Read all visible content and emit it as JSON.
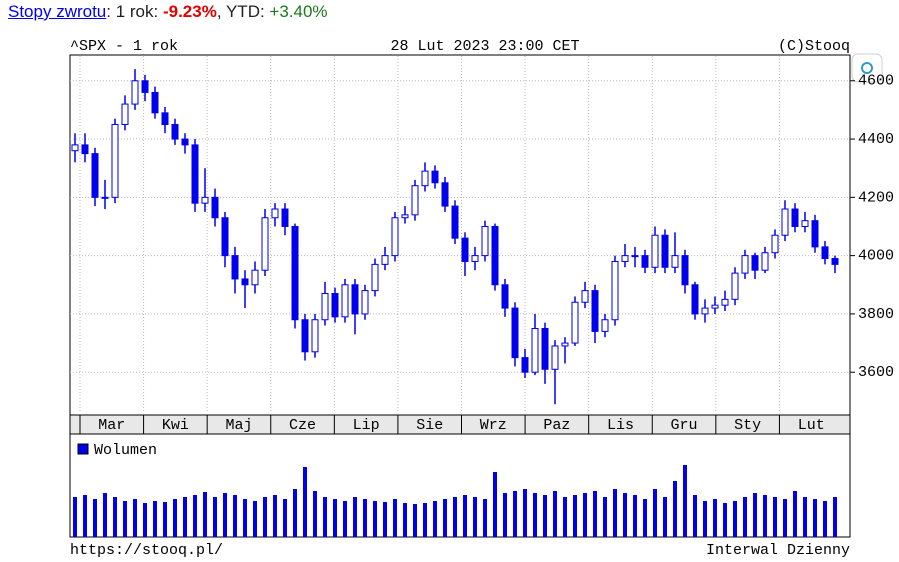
{
  "header": {
    "link": "Stopy zwrotu",
    "period_label": ": 1 rok: ",
    "period_value": "-9.23%",
    "ytd_label": ", YTD: ",
    "ytd_value": "+3.40%"
  },
  "chart_data": [
    {
      "type": "candlestick",
      "title": "^SPX - 1 rok",
      "subtitle": "28 Lut 2023 23:00 CET",
      "source": "(C)Stooq",
      "color": "#0000ee",
      "x_axis_labels": [
        "Mar",
        "Kwi",
        "Maj",
        "Cze",
        "Lip",
        "Sie",
        "Wrz",
        "Paz",
        "Lis",
        "Gru",
        "Sty",
        "Lut"
      ],
      "open": [
        4360,
        4380,
        4350,
        4200,
        4200,
        4450,
        4520,
        4600,
        4560,
        4490,
        4450,
        4400,
        4380,
        4180,
        4200,
        4130,
        4000,
        3920,
        3900,
        3950,
        4130,
        4160,
        4100,
        3780,
        3670,
        3780,
        3870,
        3790,
        3900,
        3800,
        3880,
        3970,
        4000,
        4130,
        4140,
        4240,
        4290,
        4250,
        4170,
        4060,
        3980,
        4000,
        4100,
        3900,
        3820,
        3650,
        3600,
        3750,
        3610,
        3690,
        3700,
        3840,
        3880,
        3740,
        3780,
        3980,
        4000,
        4000,
        3960,
        4070,
        3960,
        4000,
        3900,
        3800,
        3820,
        3830,
        3850,
        3940,
        4000,
        3950,
        4010,
        4070,
        4160,
        4100,
        4120,
        4030,
        3990
      ],
      "high": [
        4420,
        4420,
        4370,
        4260,
        4470,
        4550,
        4640,
        4620,
        4580,
        4510,
        4470,
        4420,
        4400,
        4300,
        4230,
        4150,
        4030,
        3950,
        3980,
        4160,
        4180,
        4180,
        4110,
        3800,
        3800,
        3910,
        3890,
        3920,
        3920,
        3900,
        3990,
        4030,
        4150,
        4170,
        4260,
        4320,
        4310,
        4270,
        4190,
        4080,
        4030,
        4120,
        4110,
        3920,
        3840,
        3680,
        3800,
        3770,
        3710,
        3720,
        3860,
        3910,
        3900,
        3800,
        4000,
        4040,
        4030,
        4020,
        4100,
        4090,
        4080,
        4020,
        3910,
        3850,
        3860,
        3880,
        3960,
        4020,
        4010,
        4030,
        4090,
        4190,
        4180,
        4150,
        4140,
        4050,
        4000
      ],
      "low": [
        4320,
        4320,
        4170,
        4160,
        4180,
        4430,
        4500,
        4530,
        4470,
        4420,
        4380,
        4350,
        4150,
        4150,
        4100,
        3960,
        3870,
        3820,
        3870,
        3930,
        4100,
        4070,
        3750,
        3640,
        3650,
        3760,
        3770,
        3770,
        3730,
        3780,
        3860,
        3950,
        3980,
        4110,
        4120,
        4220,
        4230,
        4150,
        4040,
        3930,
        3950,
        3980,
        3880,
        3790,
        3620,
        3580,
        3590,
        3560,
        3490,
        3630,
        3690,
        3820,
        3700,
        3720,
        3760,
        3960,
        3960,
        3940,
        3940,
        3940,
        3940,
        3870,
        3780,
        3770,
        3800,
        3810,
        3830,
        3920,
        3920,
        3940,
        3990,
        4050,
        4080,
        4080,
        4010,
        3970,
        3940
      ],
      "close": [
        4380,
        4350,
        4200,
        4200,
        4450,
        4520,
        4600,
        4560,
        4490,
        4450,
        4400,
        4380,
        4180,
        4200,
        4130,
        4000,
        3920,
        3900,
        3950,
        4130,
        4160,
        4100,
        3780,
        3670,
        3780,
        3870,
        3790,
        3900,
        3800,
        3880,
        3970,
        4000,
        4130,
        4140,
        4240,
        4290,
        4250,
        4170,
        4060,
        3980,
        4000,
        4100,
        3900,
        3820,
        3650,
        3600,
        3750,
        3610,
        3690,
        3700,
        3840,
        3880,
        3740,
        3780,
        3980,
        4000,
        4000,
        3960,
        4070,
        3960,
        4000,
        3900,
        3800,
        3820,
        3830,
        3850,
        3940,
        4000,
        3950,
        4010,
        4070,
        4160,
        4100,
        4120,
        4030,
        3990,
        3970
      ],
      "ylim": [
        3460,
        4685
      ],
      "yticks": [
        3600,
        3800,
        4000,
        4200,
        4400,
        4600
      ],
      "grid": true
    },
    {
      "type": "bar",
      "legend": "Wolumen",
      "color": "#0000ee",
      "values": [
        40,
        42,
        38,
        44,
        40,
        36,
        38,
        34,
        36,
        35,
        38,
        40,
        42,
        45,
        40,
        44,
        42,
        38,
        36,
        40,
        42,
        38,
        48,
        70,
        46,
        40,
        38,
        36,
        40,
        38,
        36,
        35,
        38,
        34,
        33,
        34,
        36,
        38,
        40,
        42,
        40,
        38,
        65,
        44,
        46,
        48,
        44,
        42,
        46,
        40,
        42,
        44,
        46,
        40,
        48,
        44,
        42,
        38,
        48,
        40,
        56,
        72,
        42,
        36,
        38,
        34,
        36,
        40,
        44,
        42,
        40,
        38,
        46,
        40,
        38,
        36,
        40
      ],
      "ylim": [
        0,
        100
      ]
    }
  ],
  "footer": {
    "url": "https://stooq.pl/",
    "interval": "Interwal Dzienny"
  }
}
